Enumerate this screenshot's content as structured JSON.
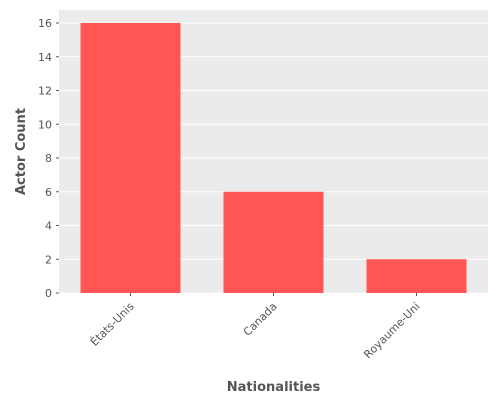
{
  "chart_data": {
    "type": "bar",
    "categories": [
      "États-Unis",
      "Canada",
      "Royaume-Uni"
    ],
    "values": [
      16,
      6,
      2
    ],
    "title": "",
    "xlabel": "Nationalities",
    "ylabel": "Actor Count",
    "ylim": [
      0,
      16.8
    ],
    "yticks": [
      0,
      2,
      4,
      6,
      8,
      10,
      12,
      14,
      16
    ],
    "grid": true,
    "bar_color": "#ff5555",
    "background_color": "#ebebeb"
  }
}
